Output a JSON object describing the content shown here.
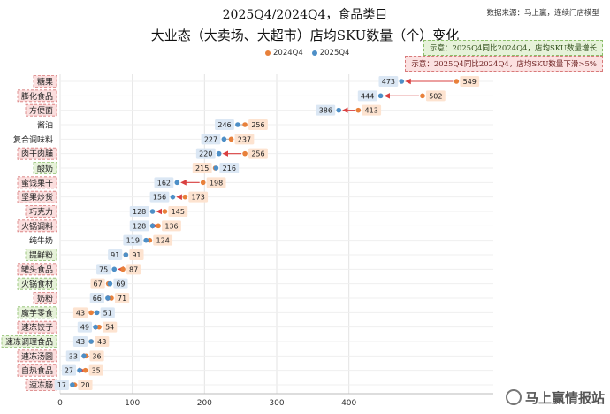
{
  "title_line1": "2025Q4/2024Q4，食品类目",
  "title_line2": "大业态（大卖场、大超市）店均SKU数量（个）变化",
  "source": "数据来源：马上赢，连续门店模型",
  "legend_notes": [
    {
      "text": "示意：2025Q4同比2024Q4，店均SKU数量增长",
      "color": "green"
    },
    {
      "text": "示意：2025Q4同比2024Q4，店均SKU数量下滑>5%",
      "color": "red"
    }
  ],
  "watermark": "马上赢情报站",
  "colors": {
    "series_2024": "#e8803a",
    "series_2025": "#4d8fc7",
    "label_bg_2024": "#fde3d0",
    "label_bg_2025": "#dbe7f4",
    "highlight_red_bg": "#fbdede",
    "highlight_red_border": "#d87a7a",
    "highlight_green_bg": "#e6f2d9",
    "highlight_green_border": "#8bbd6a",
    "arrow": "#d94040",
    "grid": "#e3e3e3"
  },
  "chart_data": {
    "type": "scatter",
    "subtype": "dumbbell",
    "xlim": [
      0,
      600
    ],
    "xticks": [
      0,
      100,
      200,
      300,
      400
    ],
    "series": [
      {
        "name": "2024Q4",
        "color": "#e8803a"
      },
      {
        "name": "2025Q4",
        "color": "#4d8fc7"
      }
    ],
    "categories": [
      {
        "name": "糖果",
        "v2024": 549,
        "v2025": 473,
        "highlight": "red"
      },
      {
        "name": "膨化食品",
        "v2024": 502,
        "v2025": 444,
        "highlight": "red"
      },
      {
        "name": "方便面",
        "v2024": 413,
        "v2025": 386,
        "highlight": "red"
      },
      {
        "name": "酱油",
        "v2024": 256,
        "v2025": 246,
        "highlight": "none"
      },
      {
        "name": "复合调味料",
        "v2024": 237,
        "v2025": 227,
        "highlight": "none"
      },
      {
        "name": "肉干肉脯",
        "v2024": 256,
        "v2025": 220,
        "highlight": "red"
      },
      {
        "name": "酸奶",
        "v2024": 215,
        "v2025": 216,
        "highlight": "green"
      },
      {
        "name": "蜜饯果干",
        "v2024": 198,
        "v2025": 162,
        "highlight": "red"
      },
      {
        "name": "坚果炒货",
        "v2024": 173,
        "v2025": 156,
        "highlight": "red"
      },
      {
        "name": "巧克力",
        "v2024": 145,
        "v2025": 128,
        "highlight": "red"
      },
      {
        "name": "火锅调料",
        "v2024": 136,
        "v2025": 128,
        "highlight": "red"
      },
      {
        "name": "纯牛奶",
        "v2024": 124,
        "v2025": 119,
        "highlight": "none"
      },
      {
        "name": "提鲜粉",
        "v2024": 91,
        "v2025": 91,
        "highlight": "green"
      },
      {
        "name": "罐头食品",
        "v2024": 87,
        "v2025": 75,
        "highlight": "red"
      },
      {
        "name": "火锅食材",
        "v2024": 67,
        "v2025": 69,
        "highlight": "green"
      },
      {
        "name": "奶粉",
        "v2024": 71,
        "v2025": 66,
        "highlight": "red"
      },
      {
        "name": "魔芋零食",
        "v2024": 43,
        "v2025": 51,
        "highlight": "green"
      },
      {
        "name": "速冻饺子",
        "v2024": 54,
        "v2025": 49,
        "highlight": "red"
      },
      {
        "name": "速冻调理食品",
        "v2024": 43,
        "v2025": 43,
        "highlight": "green"
      },
      {
        "name": "速冻汤圆",
        "v2024": 36,
        "v2025": 33,
        "highlight": "red"
      },
      {
        "name": "自热食品",
        "v2024": 35,
        "v2025": 27,
        "highlight": "red"
      },
      {
        "name": "速冻肠",
        "v2024": 20,
        "v2025": 17,
        "highlight": "red"
      }
    ]
  }
}
